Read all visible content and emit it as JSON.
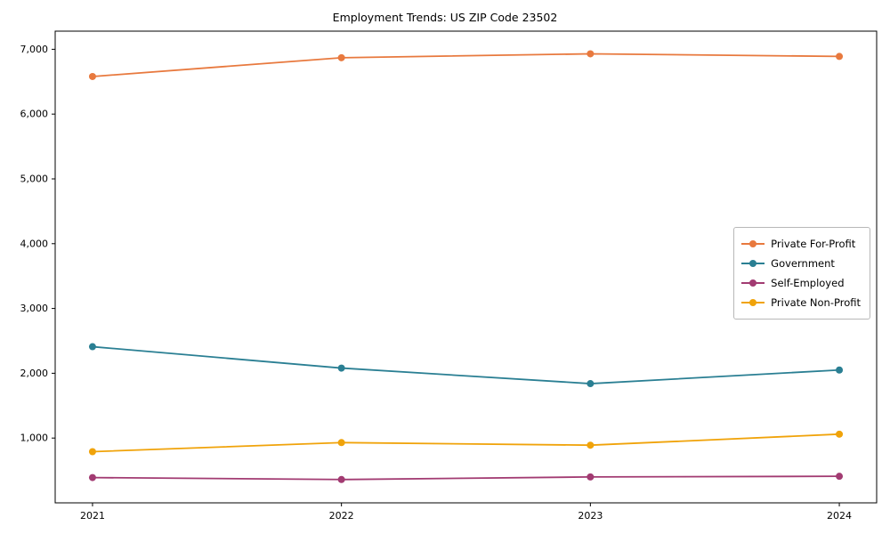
{
  "chart_data": {
    "type": "line",
    "title": "Employment Trends: US ZIP Code 23502",
    "x": [
      2021,
      2022,
      2023,
      2024
    ],
    "x_tick_labels": [
      "2021",
      "2022",
      "2023",
      "2024"
    ],
    "series": [
      {
        "name": "Private For-Profit",
        "color": "#e8793e",
        "values": [
          6580,
          6870,
          6930,
          6890
        ]
      },
      {
        "name": "Government",
        "color": "#2a7f93",
        "values": [
          2410,
          2080,
          1840,
          2050
        ]
      },
      {
        "name": "Self-Employed",
        "color": "#a23b72",
        "values": [
          390,
          360,
          400,
          410
        ]
      },
      {
        "name": "Private Non-Profit",
        "color": "#f0a30a",
        "values": [
          790,
          930,
          890,
          1060
        ]
      }
    ],
    "xlim": [
      2020.85,
      2024.15
    ],
    "ylim": [
      0,
      7280
    ],
    "y_ticks": [
      1000,
      2000,
      3000,
      4000,
      5000,
      6000,
      7000
    ],
    "grid": false,
    "legend_position": "center-right",
    "marker": "circle",
    "frame_color": "#000000",
    "background_color": "#ffffff"
  }
}
